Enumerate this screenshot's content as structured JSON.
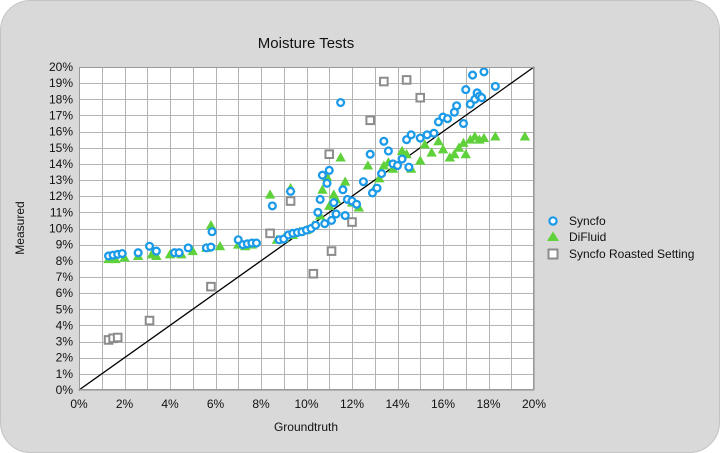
{
  "colors": {
    "background": "#d9d9d9",
    "plot_background": "#ffffff",
    "grid": "#b3b3b3",
    "syncfo": "#1a9ae8",
    "difluid": "#5fd13a",
    "syncfo_roasted": "#8c8c8c",
    "reference_line": "#000000"
  },
  "chart_data": {
    "type": "scatter",
    "title": "Moisture Tests",
    "xlabel": "Groundtruth",
    "ylabel": "Measured",
    "xlim": [
      0,
      20
    ],
    "ylim": [
      0,
      20
    ],
    "grid": true,
    "legend_position": "right",
    "x_ticks": [
      "0%",
      "2%",
      "4%",
      "6%",
      "8%",
      "10%",
      "12%",
      "14%",
      "16%",
      "18%",
      "20%"
    ],
    "y_ticks": [
      "0%",
      "1%",
      "2%",
      "3%",
      "4%",
      "5%",
      "6%",
      "7%",
      "8%",
      "9%",
      "10%",
      "11%",
      "12%",
      "13%",
      "14%",
      "15%",
      "16%",
      "17%",
      "18%",
      "19%",
      "20%"
    ],
    "reference_line": {
      "from": [
        0,
        0
      ],
      "to": [
        20,
        20
      ]
    },
    "series": [
      {
        "name": "Syncfo",
        "marker": "circle",
        "points": [
          [
            1.3,
            8.3
          ],
          [
            1.5,
            8.35
          ],
          [
            1.7,
            8.4
          ],
          [
            1.9,
            8.45
          ],
          [
            2.6,
            8.5
          ],
          [
            3.1,
            8.9
          ],
          [
            3.4,
            8.6
          ],
          [
            4.2,
            8.5
          ],
          [
            4.4,
            8.5
          ],
          [
            4.8,
            8.8
          ],
          [
            5.6,
            8.8
          ],
          [
            5.8,
            8.85
          ],
          [
            5.85,
            9.8
          ],
          [
            7.0,
            9.3
          ],
          [
            7.2,
            9.0
          ],
          [
            7.4,
            9.05
          ],
          [
            7.6,
            9.1
          ],
          [
            7.8,
            9.1
          ],
          [
            8.5,
            11.4
          ],
          [
            8.8,
            9.3
          ],
          [
            9.0,
            9.35
          ],
          [
            9.2,
            9.6
          ],
          [
            9.3,
            12.3
          ],
          [
            9.4,
            9.7
          ],
          [
            9.6,
            9.75
          ],
          [
            9.8,
            9.8
          ],
          [
            10.0,
            9.9
          ],
          [
            10.2,
            10.0
          ],
          [
            10.4,
            10.2
          ],
          [
            10.5,
            11.0
          ],
          [
            10.6,
            11.8
          ],
          [
            10.7,
            13.3
          ],
          [
            10.8,
            10.3
          ],
          [
            10.9,
            12.8
          ],
          [
            11.0,
            13.6
          ],
          [
            11.1,
            10.5
          ],
          [
            11.2,
            11.6
          ],
          [
            11.3,
            10.9
          ],
          [
            11.5,
            17.8
          ],
          [
            11.6,
            12.4
          ],
          [
            11.7,
            10.8
          ],
          [
            11.8,
            11.8
          ],
          [
            12.0,
            11.7
          ],
          [
            12.2,
            11.5
          ],
          [
            12.5,
            12.9
          ],
          [
            12.8,
            14.6
          ],
          [
            12.9,
            12.2
          ],
          [
            13.1,
            12.5
          ],
          [
            13.3,
            13.4
          ],
          [
            13.4,
            15.4
          ],
          [
            13.6,
            14.8
          ],
          [
            13.8,
            14.0
          ],
          [
            14.2,
            14.3
          ],
          [
            14.4,
            15.5
          ],
          [
            14.5,
            13.8
          ],
          [
            14.6,
            15.8
          ],
          [
            15.0,
            15.6
          ],
          [
            15.3,
            15.8
          ],
          [
            15.6,
            15.9
          ],
          [
            15.8,
            16.6
          ],
          [
            16.0,
            16.9
          ],
          [
            16.2,
            16.8
          ],
          [
            16.5,
            17.2
          ],
          [
            16.6,
            17.6
          ],
          [
            16.9,
            16.5
          ],
          [
            17.0,
            18.6
          ],
          [
            17.2,
            17.7
          ],
          [
            17.3,
            19.5
          ],
          [
            17.4,
            18.0
          ],
          [
            17.5,
            18.4
          ],
          [
            17.6,
            18.2
          ],
          [
            17.7,
            18.1
          ],
          [
            17.8,
            19.7
          ],
          [
            18.3,
            18.8
          ],
          [
            14.0,
            13.9
          ]
        ]
      },
      {
        "name": "DiFluid",
        "marker": "triangle",
        "points": [
          [
            1.3,
            8.1
          ],
          [
            1.6,
            8.1
          ],
          [
            2.0,
            8.2
          ],
          [
            2.6,
            8.3
          ],
          [
            3.2,
            8.4
          ],
          [
            3.4,
            8.3
          ],
          [
            4.0,
            8.4
          ],
          [
            4.5,
            8.4
          ],
          [
            5.0,
            8.6
          ],
          [
            5.6,
            8.8
          ],
          [
            5.8,
            10.2
          ],
          [
            6.2,
            8.9
          ],
          [
            7.0,
            9.0
          ],
          [
            7.3,
            8.9
          ],
          [
            7.6,
            9.0
          ],
          [
            8.4,
            12.1
          ],
          [
            8.7,
            9.3
          ],
          [
            9.0,
            9.4
          ],
          [
            9.3,
            12.5
          ],
          [
            9.4,
            9.6
          ],
          [
            9.7,
            9.8
          ],
          [
            10.0,
            9.9
          ],
          [
            10.3,
            10.2
          ],
          [
            10.6,
            10.8
          ],
          [
            10.7,
            12.4
          ],
          [
            10.9,
            13.2
          ],
          [
            11.0,
            11.4
          ],
          [
            11.2,
            12.1
          ],
          [
            11.3,
            11.8
          ],
          [
            11.5,
            14.4
          ],
          [
            11.7,
            12.9
          ],
          [
            12.0,
            11.6
          ],
          [
            12.3,
            11.3
          ],
          [
            12.7,
            13.9
          ],
          [
            13.0,
            12.5
          ],
          [
            13.2,
            13.1
          ],
          [
            13.4,
            13.9
          ],
          [
            13.6,
            14.1
          ],
          [
            13.8,
            13.7
          ],
          [
            14.2,
            14.8
          ],
          [
            14.4,
            14.6
          ],
          [
            14.6,
            13.7
          ],
          [
            15.0,
            14.2
          ],
          [
            15.2,
            15.2
          ],
          [
            15.5,
            14.7
          ],
          [
            15.8,
            15.4
          ],
          [
            16.0,
            14.9
          ],
          [
            16.3,
            14.4
          ],
          [
            16.5,
            14.6
          ],
          [
            16.7,
            15.0
          ],
          [
            16.9,
            15.3
          ],
          [
            17.0,
            14.6
          ],
          [
            17.2,
            15.5
          ],
          [
            17.4,
            15.7
          ],
          [
            17.6,
            15.5
          ],
          [
            17.8,
            15.6
          ],
          [
            18.3,
            15.7
          ],
          [
            19.6,
            15.7
          ]
        ]
      },
      {
        "name": "Syncfo Roasted Setting",
        "marker": "square",
        "points": [
          [
            1.3,
            3.1
          ],
          [
            1.5,
            3.2
          ],
          [
            1.7,
            3.25
          ],
          [
            3.1,
            4.3
          ],
          [
            5.8,
            6.4
          ],
          [
            8.4,
            9.7
          ],
          [
            9.3,
            11.7
          ],
          [
            10.3,
            7.2
          ],
          [
            11.0,
            14.6
          ],
          [
            11.1,
            8.6
          ],
          [
            12.0,
            10.4
          ],
          [
            12.8,
            16.7
          ],
          [
            13.4,
            19.1
          ],
          [
            14.4,
            19.2
          ],
          [
            15.0,
            18.1
          ]
        ]
      }
    ]
  }
}
